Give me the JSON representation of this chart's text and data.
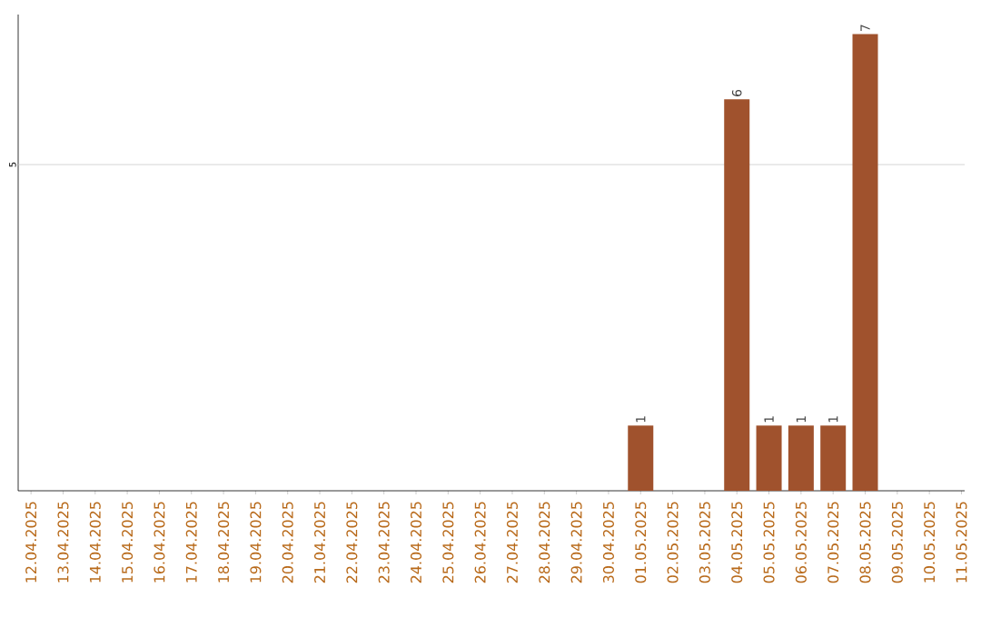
{
  "chart_data": {
    "type": "bar",
    "ylim": [
      0,
      7.3
    ],
    "categories": [
      "12.04.2025",
      "13.04.2025",
      "14.04.2025",
      "15.04.2025",
      "16.04.2025",
      "17.04.2025",
      "18.04.2025",
      "19.04.2025",
      "20.04.2025",
      "21.04.2025",
      "22.04.2025",
      "23.04.2025",
      "24.04.2025",
      "25.04.2025",
      "26.04.2025",
      "27.04.2025",
      "28.04.2025",
      "29.04.2025",
      "30.04.2025",
      "01.05.2025",
      "02.05.2025",
      "03.05.2025",
      "04.05.2025",
      "05.05.2025",
      "06.05.2025",
      "07.05.2025",
      "08.05.2025",
      "09.05.2025",
      "10.05.2025",
      "11.05.2025"
    ],
    "values": [
      null,
      null,
      null,
      null,
      null,
      null,
      null,
      null,
      null,
      null,
      null,
      null,
      null,
      null,
      null,
      null,
      null,
      null,
      null,
      1,
      null,
      null,
      6,
      1,
      1,
      1,
      7,
      null,
      null,
      null
    ],
    "data_labels": true,
    "color": "#a0522d",
    "ref_lines": [
      {
        "axis": "y",
        "value": 5,
        "label": "5",
        "color": "#cccccc"
      }
    ]
  }
}
